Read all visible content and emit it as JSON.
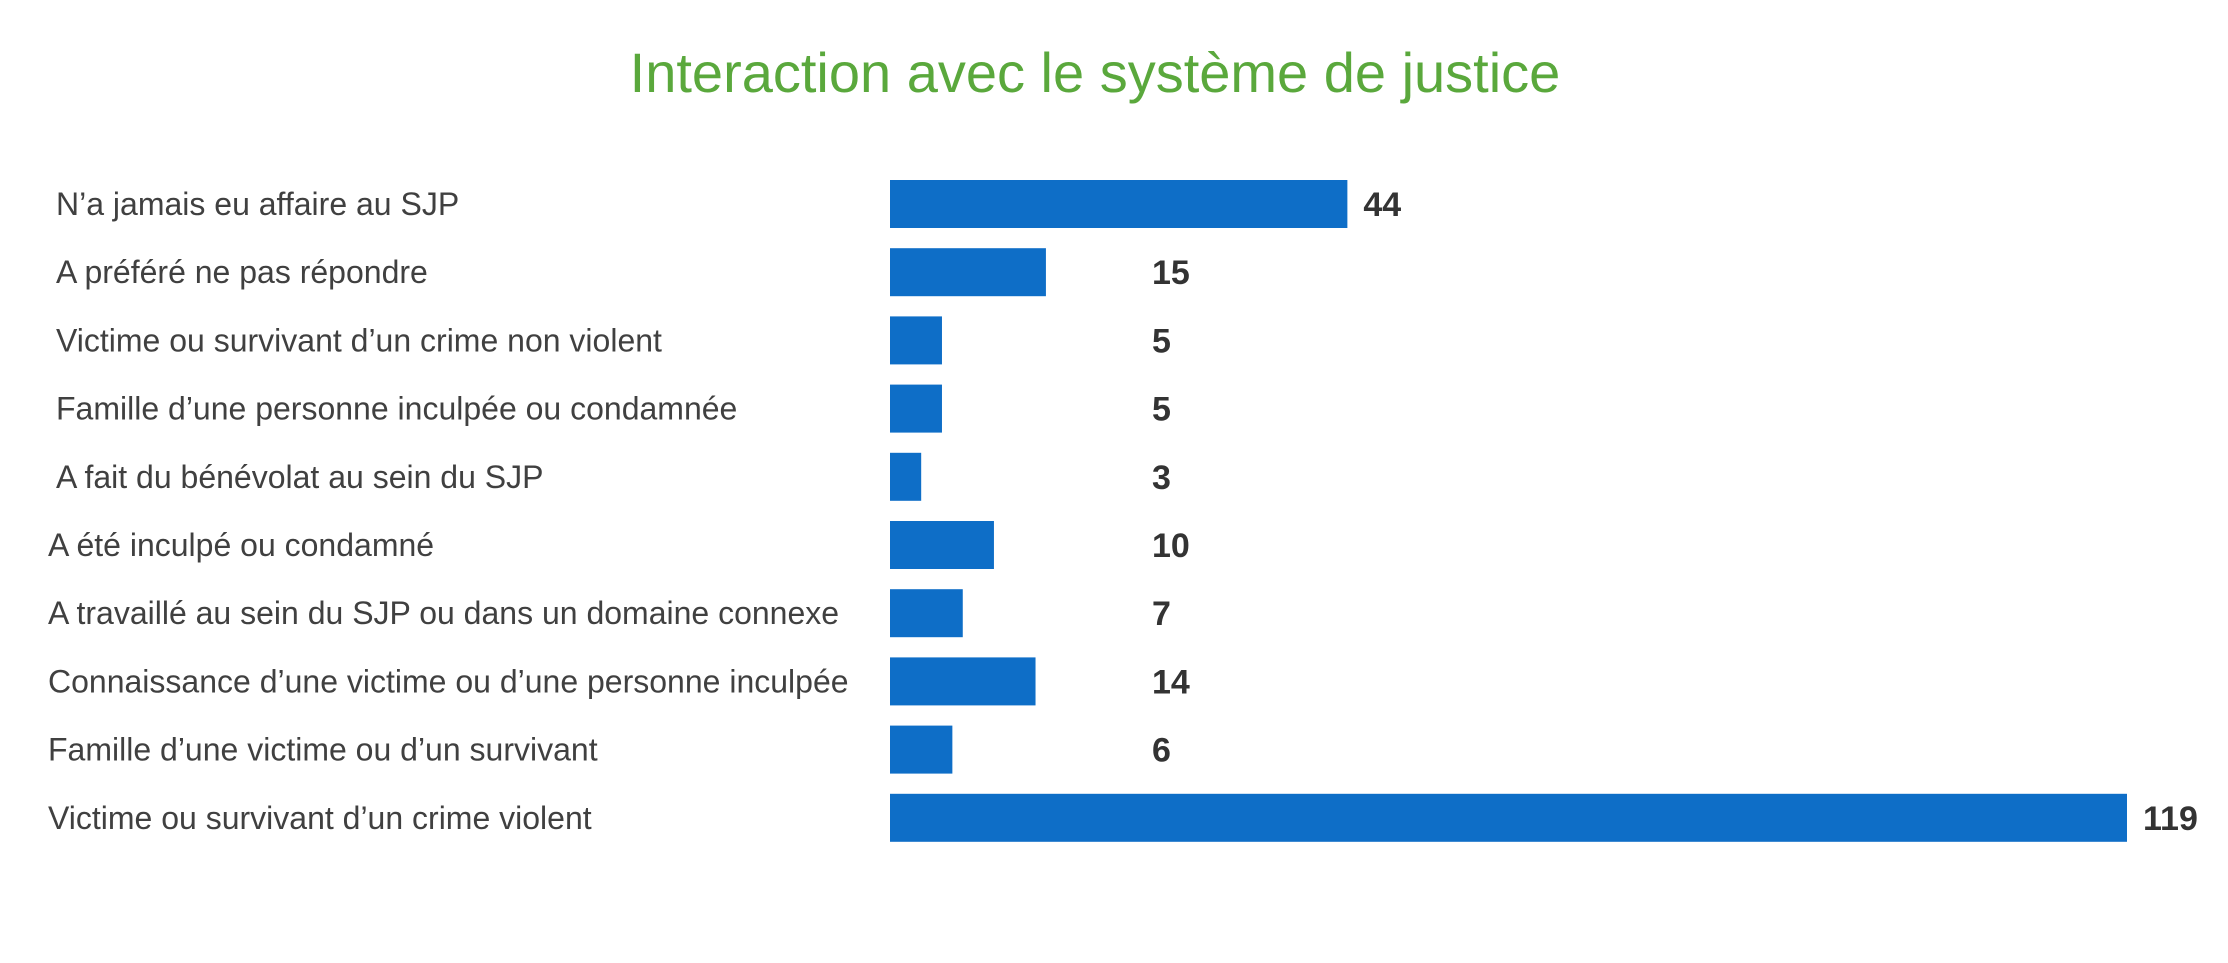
{
  "chart_data": {
    "type": "bar",
    "orientation": "horizontal",
    "title": "Interaction avec le système de justice",
    "categories": [
      "N’a jamais eu affaire au SJP",
      "A préféré ne pas répondre",
      "Victime ou survivant d’un crime non violent",
      "Famille d’une personne inculpée ou condamnée",
      "A fait du bénévolat au sein du SJP",
      "A été inculpé ou condamné",
      "A travaillé au sein du SJP ou dans un domaine connexe",
      "Connaissance d’une victime ou d’une personne inculpée",
      "Famille d’une victime ou d’un survivant",
      "Victime ou survivant d’un crime violent"
    ],
    "values": [
      44,
      15,
      5,
      5,
      3,
      10,
      7,
      14,
      6,
      119
    ],
    "xlim": [
      0,
      119
    ],
    "grid": false,
    "legend": "none",
    "data_labels": true
  },
  "colors": {
    "title": "#5aa83c",
    "bar": "#0e6ec7",
    "label": "#404040",
    "value": "#333333"
  }
}
